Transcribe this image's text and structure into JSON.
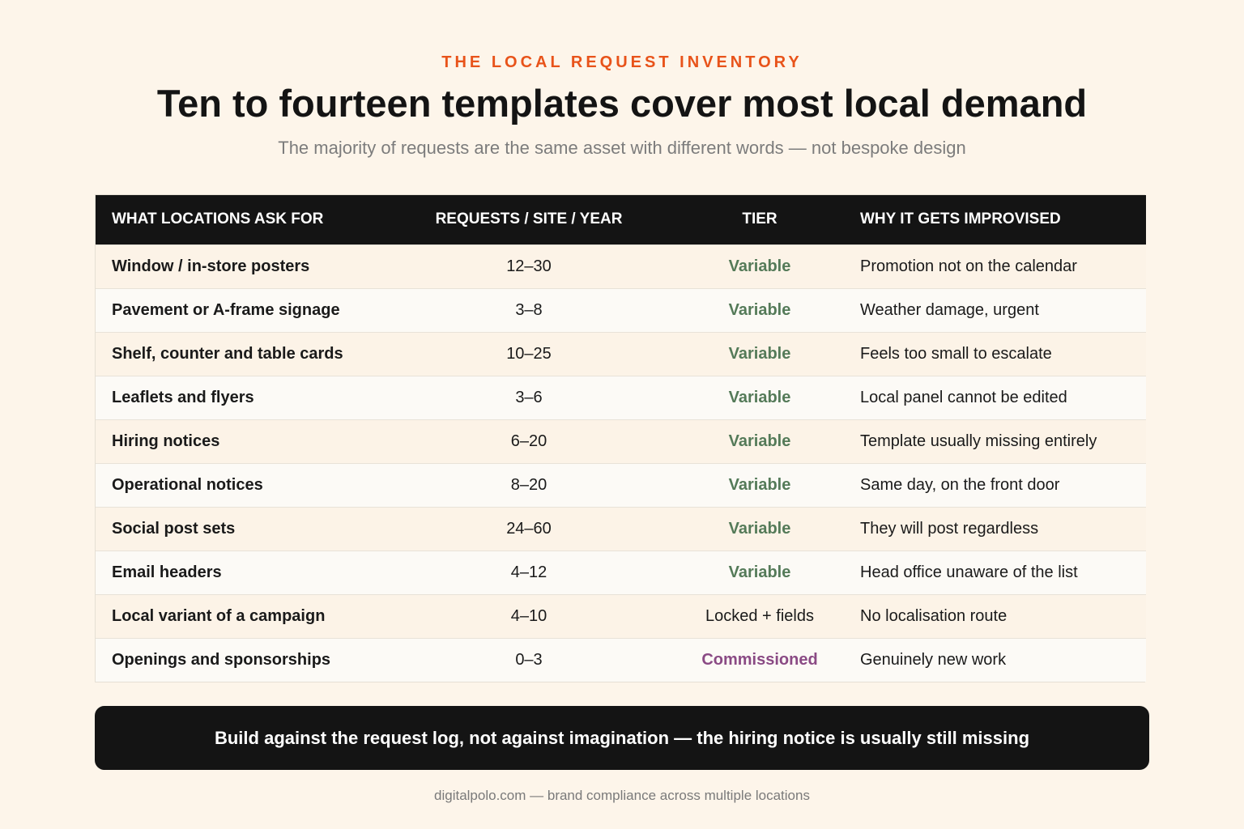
{
  "header": {
    "eyebrow": "THE LOCAL REQUEST INVENTORY",
    "title": "Ten to fourteen templates cover most local demand",
    "subtitle": "The majority of requests are the same asset with different words — not bespoke design"
  },
  "table": {
    "columns": [
      "WHAT LOCATIONS ASK FOR",
      "REQUESTS / SITE / YEAR",
      "TIER",
      "WHY IT GETS IMPROVISED"
    ],
    "rows": [
      {
        "item": "Window / in-store posters",
        "requests": "12–30",
        "tier": "Variable",
        "tier_type": "variable",
        "reason": "Promotion not on the calendar"
      },
      {
        "item": "Pavement or A-frame signage",
        "requests": "3–8",
        "tier": "Variable",
        "tier_type": "variable",
        "reason": "Weather damage, urgent"
      },
      {
        "item": "Shelf, counter and table cards",
        "requests": "10–25",
        "tier": "Variable",
        "tier_type": "variable",
        "reason": "Feels too small to escalate"
      },
      {
        "item": "Leaflets and flyers",
        "requests": "3–6",
        "tier": "Variable",
        "tier_type": "variable",
        "reason": "Local panel cannot be edited"
      },
      {
        "item": "Hiring notices",
        "requests": "6–20",
        "tier": "Variable",
        "tier_type": "variable",
        "reason": "Template usually missing entirely"
      },
      {
        "item": "Operational notices",
        "requests": "8–20",
        "tier": "Variable",
        "tier_type": "variable",
        "reason": "Same day, on the front door"
      },
      {
        "item": "Social post sets",
        "requests": "24–60",
        "tier": "Variable",
        "tier_type": "variable",
        "reason": "They will post regardless"
      },
      {
        "item": "Email headers",
        "requests": "4–12",
        "tier": "Variable",
        "tier_type": "variable",
        "reason": "Head office unaware of the list"
      },
      {
        "item": "Local variant of a campaign",
        "requests": "4–10",
        "tier": "Locked + fields",
        "tier_type": "locked",
        "reason": "No localisation route"
      },
      {
        "item": "Openings and sponsorships",
        "requests": "0–3",
        "tier": "Commissioned",
        "tier_type": "commissioned",
        "reason": "Genuinely new work"
      }
    ]
  },
  "callout": "Build against the request log, not against imagination — the hiring notice is usually still missing",
  "footer": "digitalpolo.com — brand compliance across multiple locations",
  "colors": {
    "background": "#fdf5ea",
    "accent": "#e8531a",
    "variable": "#547a58",
    "commissioned": "#8a4a84",
    "dark": "#141414"
  }
}
